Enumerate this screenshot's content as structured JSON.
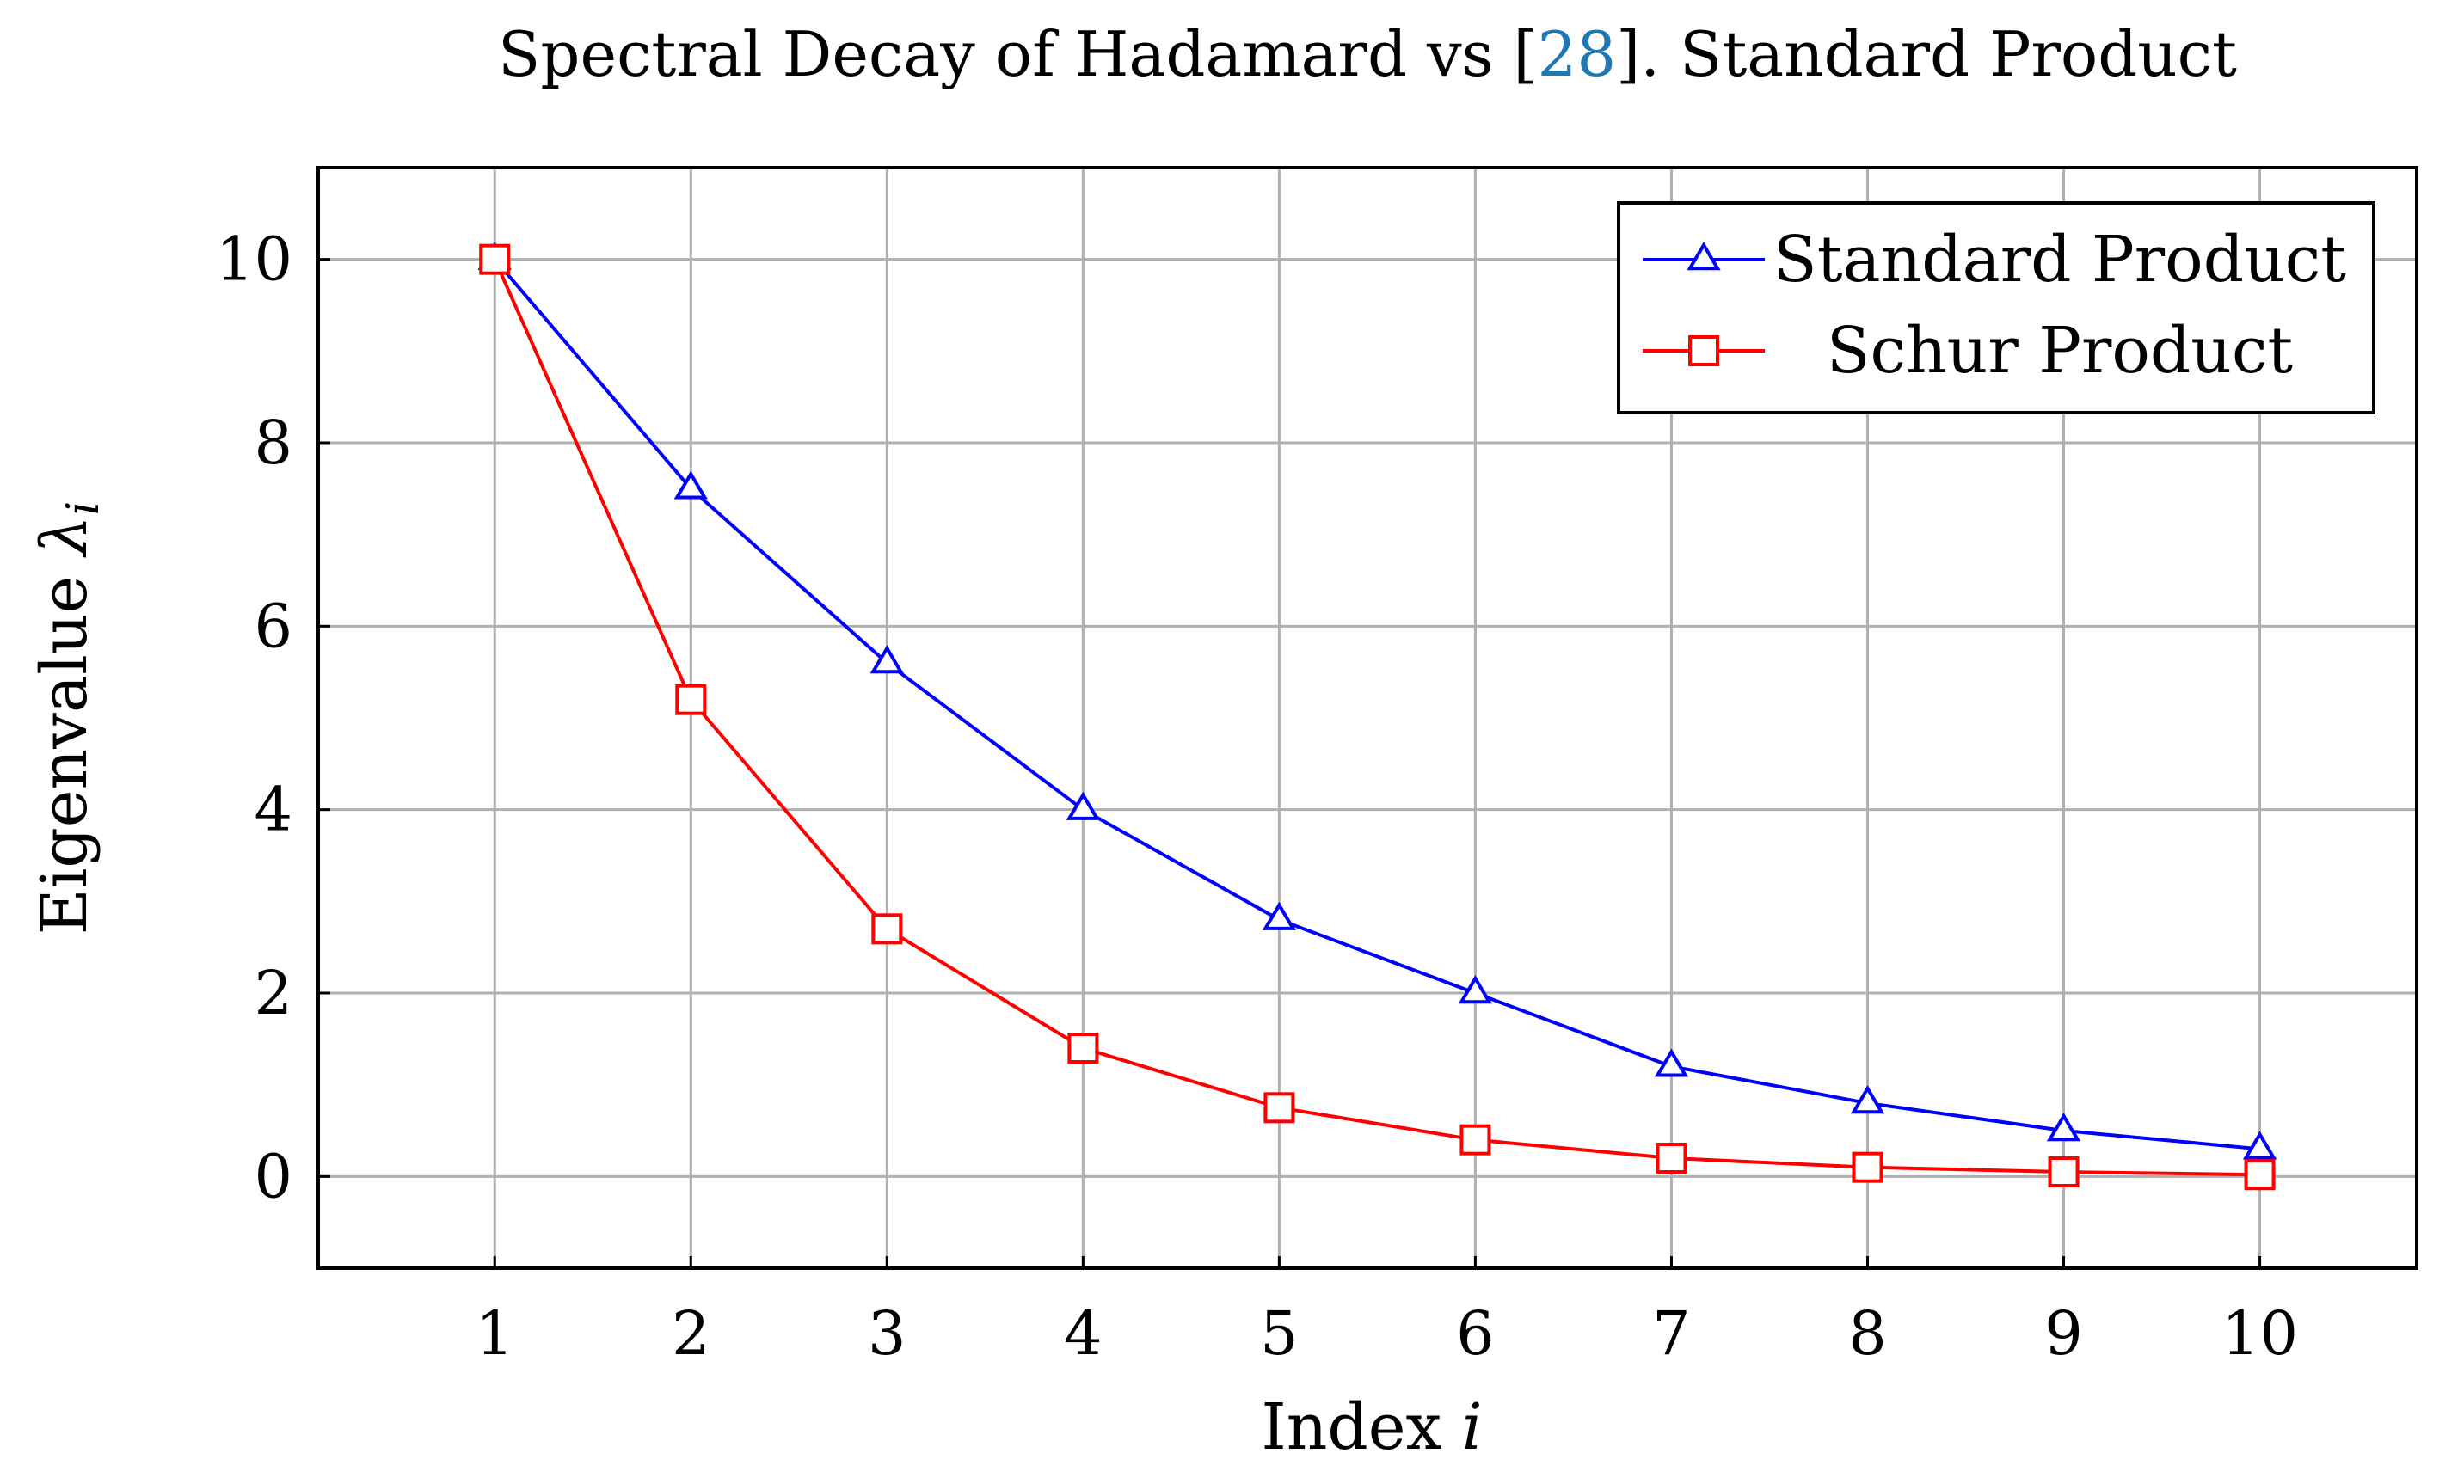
{
  "chart_data": {
    "type": "line",
    "title_parts": {
      "prefix": "Spectral Decay of Hadamard vs [",
      "cite": "28",
      "suffix": "]. Standard Product"
    },
    "xlabel_text": "Index ",
    "xlabel_var": "i",
    "ylabel_text": "Eigenvalue ",
    "ylabel_var": "λ",
    "ylabel_sub": "i",
    "x": [
      1,
      2,
      3,
      4,
      5,
      6,
      7,
      8,
      9,
      10
    ],
    "xlim": [
      0.1,
      10.8
    ],
    "ylim": [
      -1,
      11
    ],
    "yticks": [
      0,
      2,
      4,
      6,
      8,
      10
    ],
    "grid": true,
    "legend_position": "top-right",
    "series": [
      {
        "name": "Standard Product",
        "color": "#0000ff",
        "marker": "triangle",
        "values": [
          10,
          7.5,
          5.6,
          4.0,
          2.8,
          2.0,
          1.2,
          0.8,
          0.5,
          0.3
        ]
      },
      {
        "name": "Schur Product",
        "color": "#ff0000",
        "marker": "square",
        "values": [
          10,
          5.2,
          2.7,
          1.4,
          0.75,
          0.4,
          0.2,
          0.1,
          0.05,
          0.02
        ]
      }
    ]
  }
}
